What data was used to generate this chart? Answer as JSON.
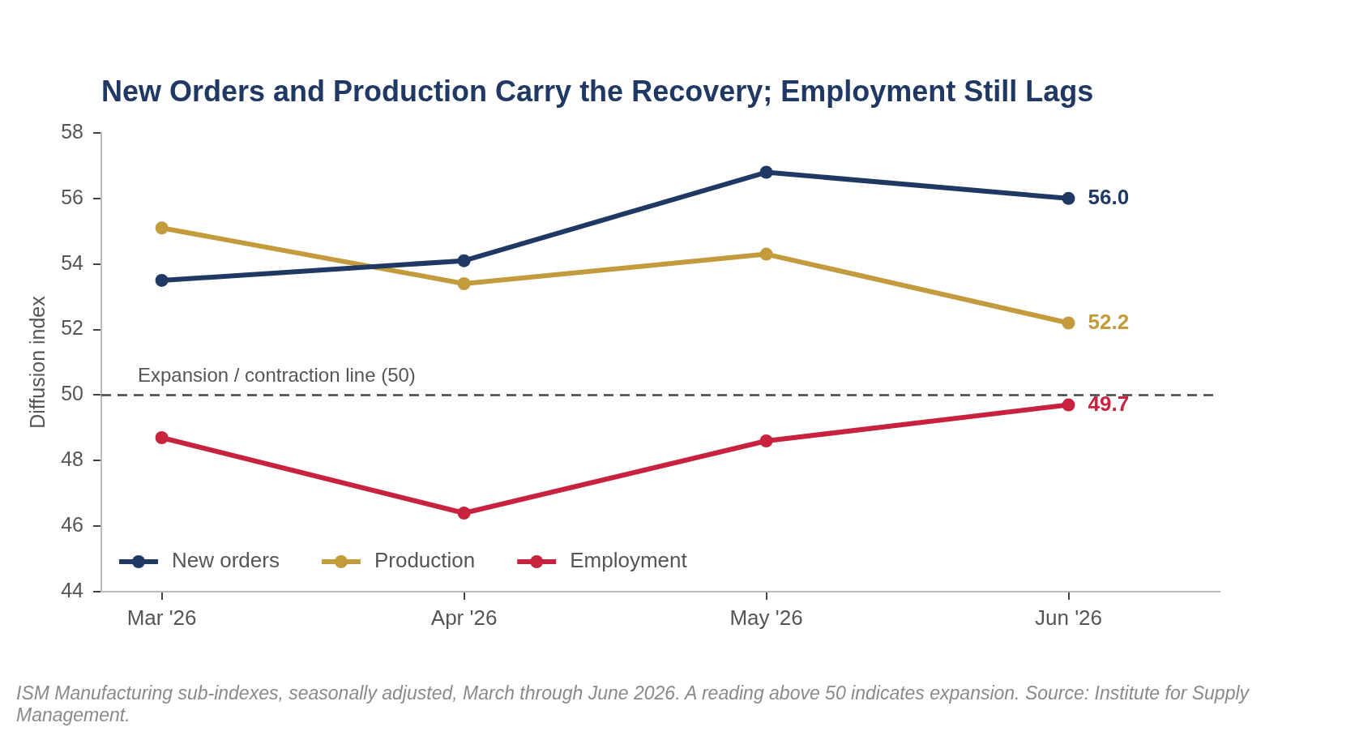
{
  "chart_data": {
    "type": "line",
    "title": "New Orders and Production Carry the Recovery; Employment Still Lags",
    "ylabel": "Diffusion index",
    "categories": [
      "Mar '26",
      "Apr '26",
      "May '26",
      "Jun '26"
    ],
    "series": [
      {
        "name": "New orders",
        "color": "#1f3864",
        "values": [
          53.5,
          54.1,
          56.8,
          56.0
        ],
        "value_labels": [
          null,
          null,
          null,
          "56.0"
        ]
      },
      {
        "name": "Production",
        "color": "#c39a3c",
        "values": [
          55.1,
          53.4,
          54.3,
          52.2
        ],
        "value_labels": [
          null,
          null,
          null,
          "52.2"
        ]
      },
      {
        "name": "Employment",
        "color": "#c8223f",
        "values": [
          48.7,
          46.4,
          48.6,
          49.7
        ],
        "value_labels": [
          null,
          null,
          null,
          "49.7"
        ]
      }
    ],
    "ylim": [
      44,
      58
    ],
    "yticks": [
      44,
      46,
      48,
      50,
      52,
      54,
      56,
      58
    ],
    "ref_lines": [
      {
        "axis": "y",
        "value": 50,
        "label": "Expansion / contraction line (50)",
        "color": "#444444",
        "line_style": "dashed"
      }
    ],
    "annotations": [
      "ISM Manufacturing sub-indexes, seasonally adjusted, March through June 2026. A reading above 50 indicates expansion. Source: Institute for Supply Management."
    ],
    "legend": "bottom left",
    "marker": "circle",
    "line_style": "solid"
  }
}
